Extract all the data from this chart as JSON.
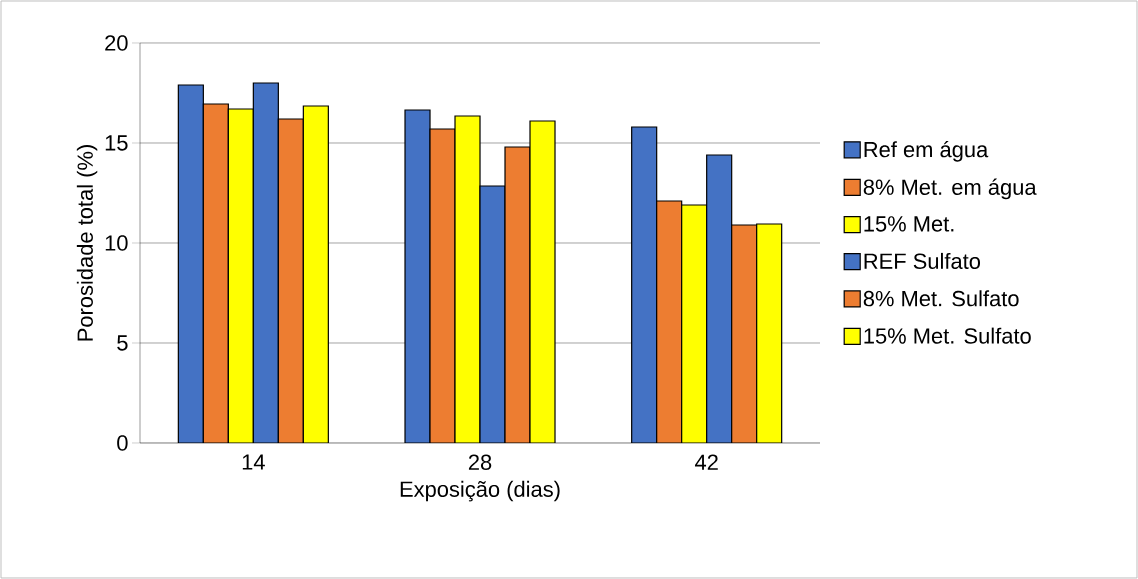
{
  "chart_data": {
    "type": "bar",
    "xlabel": "Exposição (dias)",
    "ylabel": "Porosidade total (%)",
    "categories": [
      "14",
      "28",
      "42"
    ],
    "ylim": [
      0,
      20
    ],
    "yticks": [
      0,
      5,
      10,
      15,
      20
    ],
    "grid": "y",
    "legend": "right",
    "series": [
      {
        "name": "Ref em água",
        "color": "#4472c4",
        "values": [
          17.9,
          16.65,
          15.8
        ]
      },
      {
        "name": "8% Met. em água",
        "color": "#ed7d31",
        "values": [
          16.95,
          15.7,
          12.1
        ]
      },
      {
        "name": "15% Met.",
        "color": "#ffff00",
        "values": [
          16.7,
          16.35,
          11.9
        ]
      },
      {
        "name": "REF Sulfato",
        "color": "#4472c4",
        "values": [
          18.0,
          12.85,
          14.4
        ]
      },
      {
        "name": "8% Met. Sulfato",
        "color": "#ed7d31",
        "values": [
          16.2,
          14.8,
          10.9
        ]
      },
      {
        "name": "15% Met. Sulfato",
        "color": "#ffff00",
        "values": [
          16.85,
          16.1,
          10.95
        ]
      }
    ]
  }
}
